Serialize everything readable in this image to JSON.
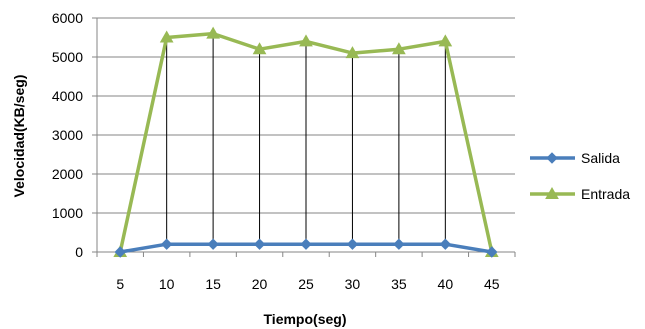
{
  "chart_data": {
    "type": "line",
    "xlabel": "Tiempo(seg)",
    "ylabel": "Velocidad(KB/seg)",
    "categories": [
      "5",
      "10",
      "15",
      "20",
      "25",
      "30",
      "35",
      "40",
      "45"
    ],
    "ylim": [
      0,
      6000
    ],
    "yticks": [
      0,
      1000,
      2000,
      3000,
      4000,
      5000,
      6000
    ],
    "grid": true,
    "drop_lines": true,
    "legend_position": "right",
    "series": [
      {
        "name": "Salida",
        "color": "#4a7ebb",
        "marker": "diamond",
        "values": [
          0,
          200,
          200,
          200,
          200,
          200,
          200,
          200,
          0
        ]
      },
      {
        "name": "Entrada",
        "color": "#98b954",
        "marker": "triangle",
        "values": [
          0,
          5500,
          5600,
          5200,
          5400,
          5100,
          5200,
          5400,
          0
        ]
      }
    ]
  }
}
